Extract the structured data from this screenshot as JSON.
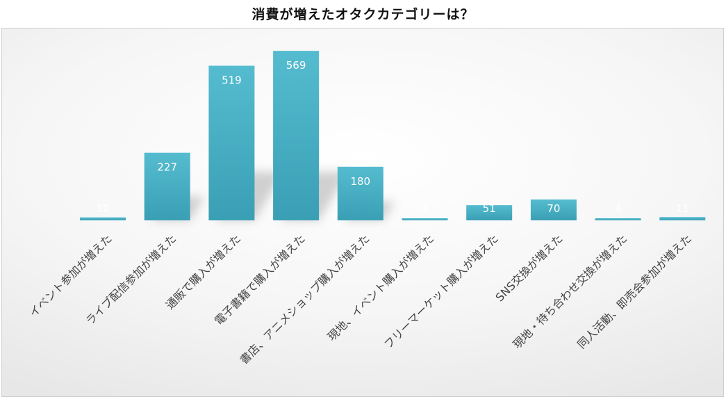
{
  "chart_data": {
    "type": "bar",
    "title": "消費が増えたオタクカテゴリーは？",
    "xlabel": "",
    "ylabel": "",
    "categories": [
      "イベント参加が増えた",
      "ライブ配信参加が増えた",
      "通販で購入が増えた",
      "電子書籍で購入が増えた",
      "書店、アニメショップ購入が増えた",
      "現地、イベント購入が増えた",
      "フリーマーケット購入が増えた",
      "SNS交換が増えた",
      "現地・待ち合わせ交換が増えた",
      "同人活動、即売会参加が増えた"
    ],
    "values": [
      10,
      227,
      519,
      569,
      180,
      4,
      51,
      70,
      4,
      11
    ],
    "ylim": [
      0,
      600
    ],
    "grid": false,
    "legend": "none",
    "data_labels": true,
    "colors": {
      "bar_top": "#55bcd0",
      "bar_bottom": "#3a9fb4",
      "label": "#ffffff"
    }
  }
}
